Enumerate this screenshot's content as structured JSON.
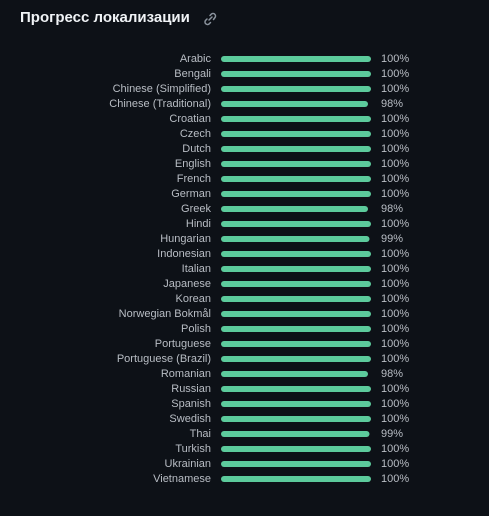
{
  "chart_data": {
    "type": "bar",
    "orientation": "horizontal",
    "title": "Прогресс локализации",
    "categories": [
      "Arabic",
      "Bengali",
      "Chinese (Simplified)",
      "Chinese (Traditional)",
      "Croatian",
      "Czech",
      "Dutch",
      "English",
      "French",
      "German",
      "Greek",
      "Hindi",
      "Hungarian",
      "Indonesian",
      "Italian",
      "Japanese",
      "Korean",
      "Norwegian Bokmål",
      "Polish",
      "Portuguese",
      "Portuguese (Brazil)",
      "Romanian",
      "Russian",
      "Spanish",
      "Swedish",
      "Thai",
      "Turkish",
      "Ukrainian",
      "Vietnamese"
    ],
    "values": [
      100,
      100,
      100,
      98,
      100,
      100,
      100,
      100,
      100,
      100,
      98,
      100,
      99,
      100,
      100,
      100,
      100,
      100,
      100,
      100,
      100,
      98,
      100,
      100,
      100,
      99,
      100,
      100,
      100
    ],
    "value_labels": [
      "100%",
      "100%",
      "100%",
      "98%",
      "100%",
      "100%",
      "100%",
      "100%",
      "100%",
      "100%",
      "98%",
      "100%",
      "99%",
      "100%",
      "100%",
      "100%",
      "100%",
      "100%",
      "100%",
      "100%",
      "100%",
      "98%",
      "100%",
      "100%",
      "100%",
      "99%",
      "100%",
      "100%",
      "100%"
    ],
    "color": "#5ccb9c",
    "xlim": [
      0,
      100
    ]
  }
}
